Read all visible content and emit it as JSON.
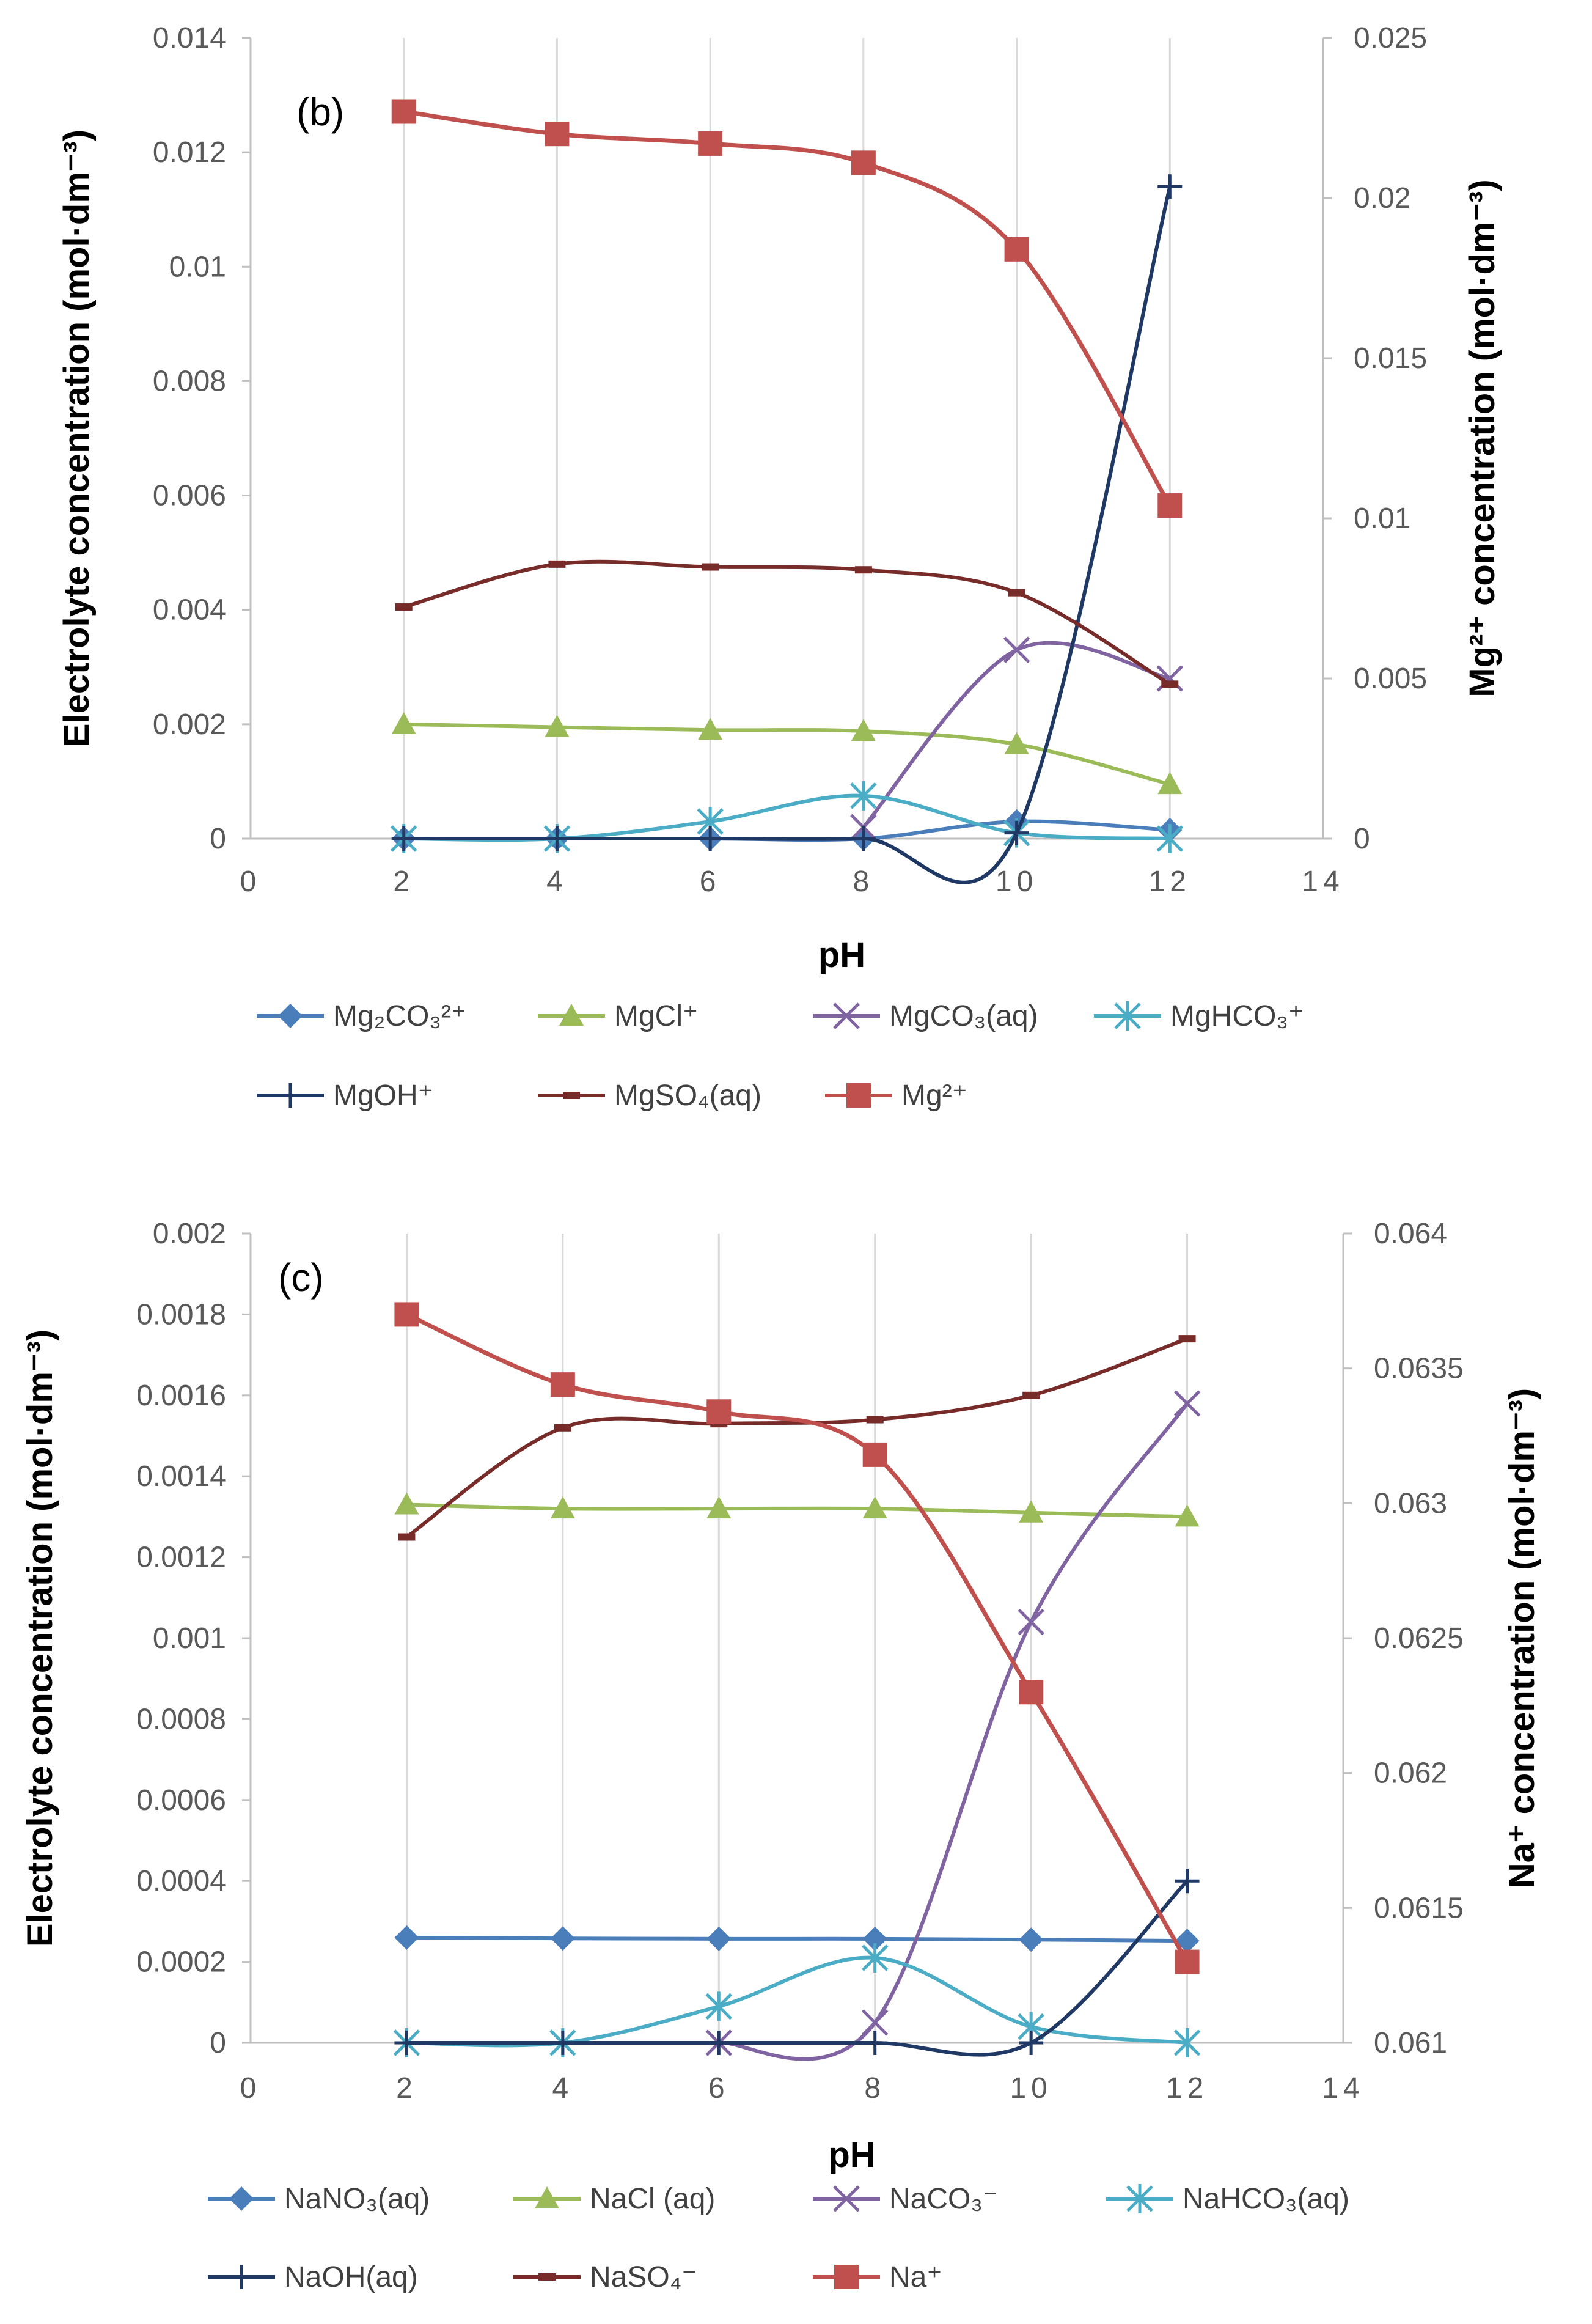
{
  "chart_data": [
    {
      "type": "line",
      "panel_label": "(b)",
      "xlabel": "pH",
      "ylabel": "Electrolyte concentration (mol·dm⁻³)",
      "y2label": "Mg²⁺ concentration (mol·dm⁻³)",
      "xlim": [
        0,
        14
      ],
      "ylim": [
        0,
        0.014
      ],
      "y2lim": [
        0,
        0.025
      ],
      "x_ticks": [
        "0",
        "2",
        "4",
        "6",
        "8",
        "10",
        "12",
        "14"
      ],
      "y_ticks": [
        "0",
        "0.002",
        "0.004",
        "0.006",
        "0.008",
        "0.01",
        "0.012",
        "0.014"
      ],
      "y2_ticks": [
        "0",
        "0.005",
        "0.01",
        "0.015",
        "0.02",
        "0.025"
      ],
      "x": [
        2,
        4,
        6,
        8,
        10,
        12
      ],
      "series": [
        {
          "name": "Mg₂CO₃²⁺",
          "axis": "left",
          "color": "#4a7ebb",
          "marker": "diamond",
          "values": [
            0,
            0,
            0,
            0,
            0.0003,
            0.00015
          ]
        },
        {
          "name": "MgCl⁺",
          "axis": "left",
          "color": "#9bbb59",
          "marker": "triangle",
          "values": [
            0.002,
            0.00195,
            0.0019,
            0.00188,
            0.00165,
            0.00095
          ]
        },
        {
          "name": "MgCO₃(aq)",
          "axis": "left",
          "color": "#8064a2",
          "marker": "x",
          "values": [
            null,
            null,
            null,
            0.0002,
            0.0033,
            0.0028
          ]
        },
        {
          "name": "MgHCO₃⁺",
          "axis": "left",
          "color": "#4bacc6",
          "marker": "star",
          "values": [
            0,
            0,
            0.0003,
            0.00075,
            0.0001,
            0
          ]
        },
        {
          "name": "MgOH⁺",
          "axis": "left",
          "color": "#1f3864",
          "marker": "plus",
          "values": [
            0,
            0,
            0,
            0,
            0.0001,
            0.0114
          ]
        },
        {
          "name": "MgSO₄(aq)",
          "axis": "left",
          "color": "#772c2a",
          "marker": "dash",
          "values": [
            0.00405,
            0.0048,
            0.00475,
            0.0047,
            0.0043,
            0.0027
          ]
        },
        {
          "name": "Mg²⁺",
          "axis": "right",
          "color": "#c0504d",
          "marker": "square",
          "values": [
            0.0227,
            0.022,
            0.0217,
            0.0211,
            0.0184,
            0.0104
          ]
        }
      ]
    },
    {
      "type": "line",
      "panel_label": "(c)",
      "xlabel": "pH",
      "ylabel": "Electrolyte concentration (mol·dm⁻³)",
      "y2label": "Na⁺ concentration (mol·dm⁻³)",
      "xlim": [
        0,
        14
      ],
      "ylim": [
        0,
        0.002
      ],
      "y2lim": [
        0.061,
        0.064
      ],
      "x_ticks": [
        "0",
        "2",
        "4",
        "6",
        "8",
        "10",
        "12",
        "14"
      ],
      "y_ticks": [
        "0",
        "0.0002",
        "0.0004",
        "0.0006",
        "0.0008",
        "0.001",
        "0.0012",
        "0.0014",
        "0.0016",
        "0.0018",
        "0.002"
      ],
      "y2_ticks": [
        "0.061",
        "0.0615",
        "0.062",
        "0.0625",
        "0.063",
        "0.0635",
        "0.064"
      ],
      "x": [
        2,
        4,
        6,
        8,
        10,
        12
      ],
      "series": [
        {
          "name": "NaNO₃(aq)",
          "axis": "left",
          "color": "#4a7ebb",
          "marker": "diamond",
          "values": [
            0.00026,
            0.000258,
            0.000257,
            0.000257,
            0.000255,
            0.000252
          ]
        },
        {
          "name": "NaCl (aq)",
          "axis": "left",
          "color": "#9bbb59",
          "marker": "triangle",
          "values": [
            0.00133,
            0.00132,
            0.00132,
            0.00132,
            0.00131,
            0.0013
          ]
        },
        {
          "name": "NaCO₃⁻",
          "axis": "left",
          "color": "#8064a2",
          "marker": "x",
          "values": [
            null,
            null,
            0,
            5e-05,
            0.00104,
            0.00158
          ]
        },
        {
          "name": "NaHCO₃(aq)",
          "axis": "left",
          "color": "#4bacc6",
          "marker": "star",
          "values": [
            0,
            0,
            9e-05,
            0.00021,
            4e-05,
            0
          ]
        },
        {
          "name": "NaOH(aq)",
          "axis": "left",
          "color": "#1f3864",
          "marker": "plus",
          "values": [
            0,
            0,
            0,
            0,
            0,
            0.0004
          ]
        },
        {
          "name": "NaSO₄⁻",
          "axis": "left",
          "color": "#772c2a",
          "marker": "dash",
          "values": [
            0.00125,
            0.00152,
            0.00153,
            0.00154,
            0.0016,
            0.00174
          ]
        },
        {
          "name": "Na⁺",
          "axis": "right",
          "color": "#c0504d",
          "marker": "square",
          "values": [
            0.0637,
            0.06344,
            0.06334,
            0.06318,
            0.0623,
            0.0613
          ]
        }
      ]
    }
  ]
}
